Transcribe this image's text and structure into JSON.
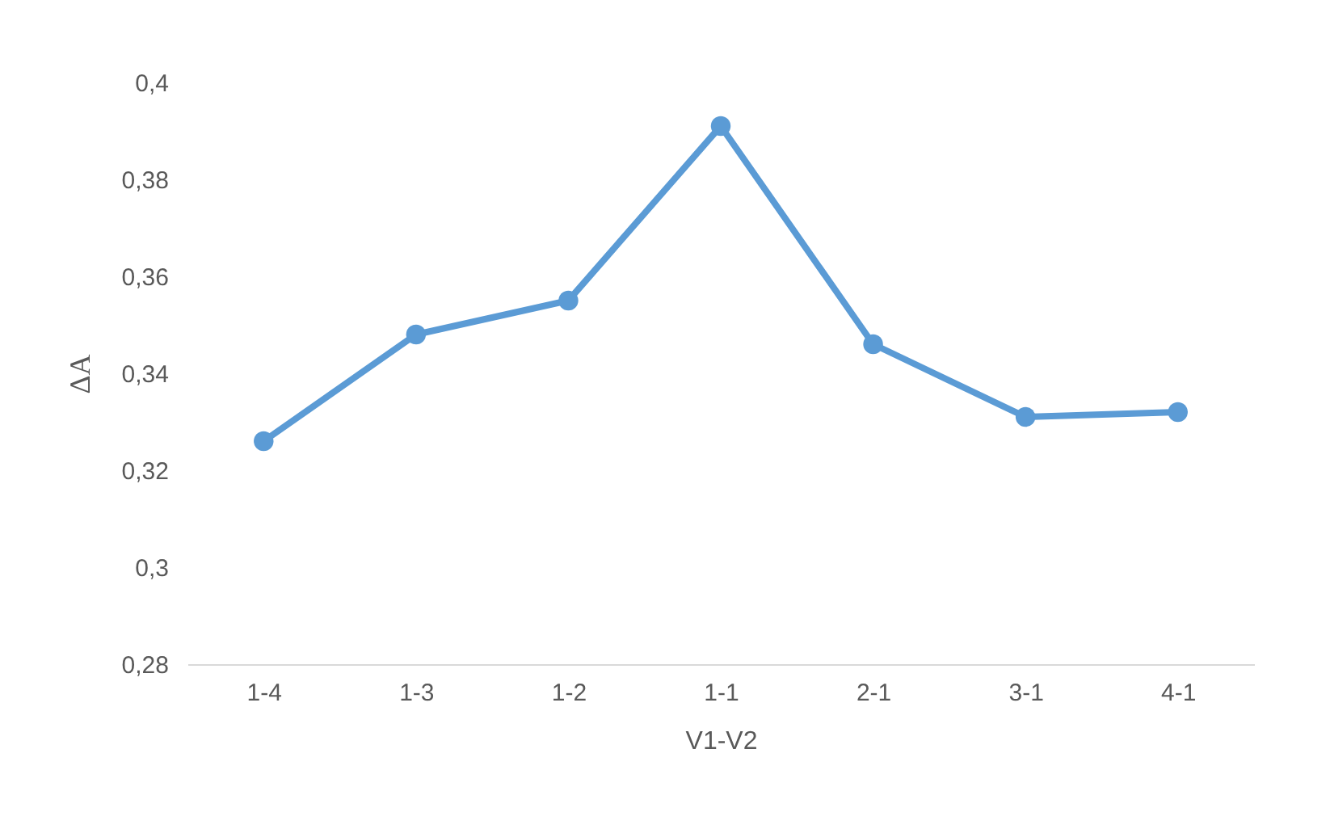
{
  "chart_data": {
    "type": "line",
    "xlabel": "V1-V2",
    "ylabel": "ΔA",
    "categories": [
      "1-4",
      "1-3",
      "1-2",
      "1-1",
      "2-1",
      "3-1",
      "4-1"
    ],
    "series": [
      {
        "color": "#5b9bd5",
        "values": [
          0.326,
          0.348,
          0.355,
          0.391,
          0.346,
          0.331,
          0.332
        ]
      }
    ],
    "ylim": [
      0.28,
      0.4
    ],
    "yticks": [
      {
        "value": 0.28,
        "label": "0,28"
      },
      {
        "value": 0.3,
        "label": "0,3"
      },
      {
        "value": 0.32,
        "label": "0,32"
      },
      {
        "value": 0.34,
        "label": "0,34"
      },
      {
        "value": 0.36,
        "label": "0,36"
      },
      {
        "value": 0.38,
        "label": "0,38"
      },
      {
        "value": 0.4,
        "label": "0,4"
      }
    ],
    "grid": false,
    "marker": "circle",
    "line_style": "solid"
  }
}
